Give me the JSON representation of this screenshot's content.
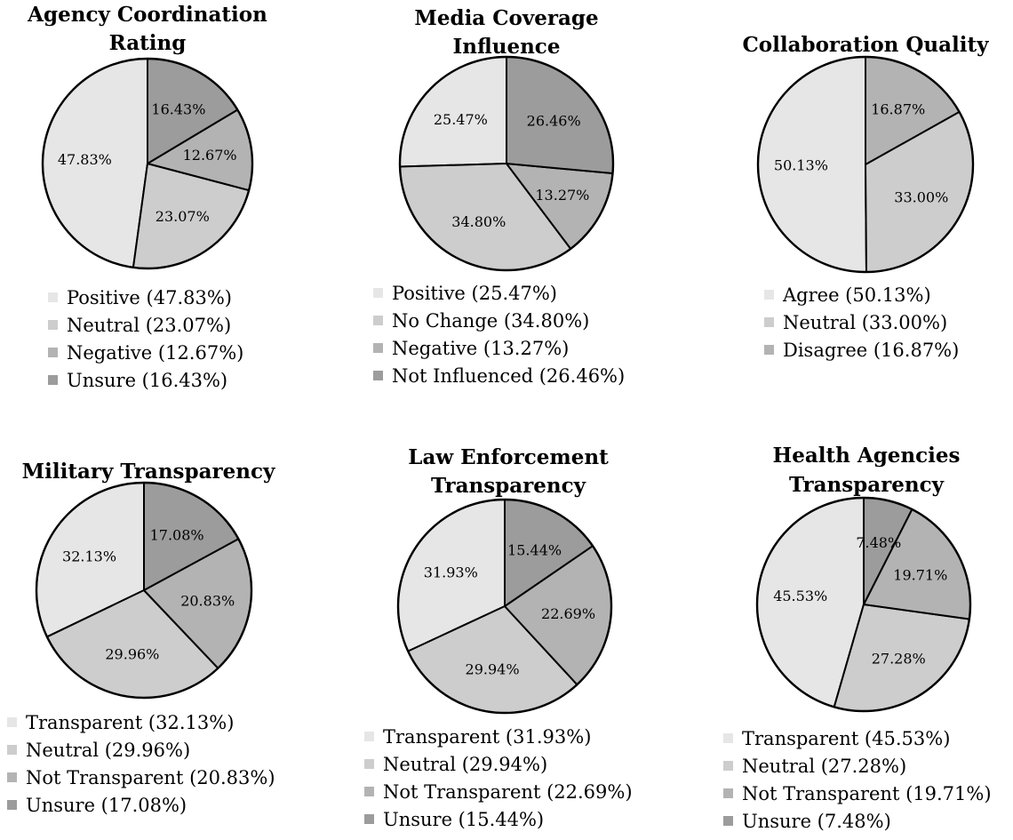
{
  "chart_data": [
    {
      "type": "pie",
      "title": [
        "Agency Coordination",
        "Rating"
      ],
      "slices": [
        {
          "label": "Positive",
          "value": 47.83,
          "pct_label": "47.83%",
          "legend": "Positive (47.83%)",
          "color": "#e6e6e6"
        },
        {
          "label": "Neutral",
          "value": 23.07,
          "pct_label": "23.07%",
          "legend": "Neutral (23.07%)",
          "color": "#cdcdcd"
        },
        {
          "label": "Negative",
          "value": 12.67,
          "pct_label": "12.67%",
          "legend": "Negative (12.67%)",
          "color": "#b3b3b3"
        },
        {
          "label": "Unsure",
          "value": 16.43,
          "pct_label": "16.43%",
          "legend": "Unsure (16.43%)",
          "color": "#9c9c9c"
        }
      ]
    },
    {
      "type": "pie",
      "title": [
        "Media Coverage",
        "Influence"
      ],
      "slices": [
        {
          "label": "Positive",
          "value": 25.47,
          "pct_label": "25.47%",
          "legend": "Positive (25.47%)",
          "color": "#e6e6e6"
        },
        {
          "label": "No Change",
          "value": 34.8,
          "pct_label": "34.80%",
          "legend": "No Change (34.80%)",
          "color": "#cdcdcd"
        },
        {
          "label": "Negative",
          "value": 13.27,
          "pct_label": "13.27%",
          "legend": "Negative (13.27%)",
          "color": "#b3b3b3"
        },
        {
          "label": "Not Influenced",
          "value": 26.46,
          "pct_label": "26.46%",
          "legend": "Not Influenced (26.46%)",
          "color": "#9c9c9c"
        }
      ]
    },
    {
      "type": "pie",
      "title": [
        "Collaboration Quality"
      ],
      "slices": [
        {
          "label": "Agree",
          "value": 50.13,
          "pct_label": "50.13%",
          "legend": "Agree (50.13%)",
          "color": "#e6e6e6"
        },
        {
          "label": "Neutral",
          "value": 33.0,
          "pct_label": "33.00%",
          "legend": "Neutral (33.00%)",
          "color": "#cdcdcd"
        },
        {
          "label": "Disagree",
          "value": 16.87,
          "pct_label": "16.87%",
          "legend": "Disagree (16.87%)",
          "color": "#b3b3b3"
        }
      ]
    },
    {
      "type": "pie",
      "title": [
        "Military Transparency"
      ],
      "slices": [
        {
          "label": "Transparent",
          "value": 32.13,
          "pct_label": "32.13%",
          "legend": "Transparent (32.13%)",
          "color": "#e6e6e6"
        },
        {
          "label": "Neutral",
          "value": 29.96,
          "pct_label": "29.96%",
          "legend": "Neutral (29.96%)",
          "color": "#cdcdcd"
        },
        {
          "label": "Not Transparent",
          "value": 20.83,
          "pct_label": "20.83%",
          "legend": "Not Transparent (20.83%)",
          "color": "#b3b3b3"
        },
        {
          "label": "Unsure",
          "value": 17.08,
          "pct_label": "17.08%",
          "legend": "Unsure (17.08%)",
          "color": "#9c9c9c"
        }
      ]
    },
    {
      "type": "pie",
      "title": [
        "Law Enforcement",
        "Transparency"
      ],
      "slices": [
        {
          "label": "Transparent",
          "value": 31.93,
          "pct_label": "31.93%",
          "legend": "Transparent (31.93%)",
          "color": "#e6e6e6"
        },
        {
          "label": "Neutral",
          "value": 29.94,
          "pct_label": "29.94%",
          "legend": "Neutral (29.94%)",
          "color": "#cdcdcd"
        },
        {
          "label": "Not Transparent",
          "value": 22.69,
          "pct_label": "22.69%",
          "legend": "Not Transparent (22.69%)",
          "color": "#b3b3b3"
        },
        {
          "label": "Unsure",
          "value": 15.44,
          "pct_label": "15.44%",
          "legend": "Unsure (15.44%)",
          "color": "#9c9c9c"
        }
      ]
    },
    {
      "type": "pie",
      "title": [
        "Health Agencies",
        "Transparency"
      ],
      "slices": [
        {
          "label": "Transparent",
          "value": 45.53,
          "pct_label": "45.53%",
          "legend": "Transparent (45.53%)",
          "color": "#e6e6e6"
        },
        {
          "label": "Neutral",
          "value": 27.28,
          "pct_label": "27.28%",
          "legend": "Neutral (27.28%)",
          "color": "#cdcdcd"
        },
        {
          "label": "Not Transparent",
          "value": 19.71,
          "pct_label": "19.71%",
          "legend": "Not Transparent (19.71%)",
          "color": "#b3b3b3"
        },
        {
          "label": "Unsure",
          "value": 7.48,
          "pct_label": "7.48%",
          "legend": "Unsure (7.48%)",
          "color": "#9c9c9c"
        }
      ]
    }
  ]
}
